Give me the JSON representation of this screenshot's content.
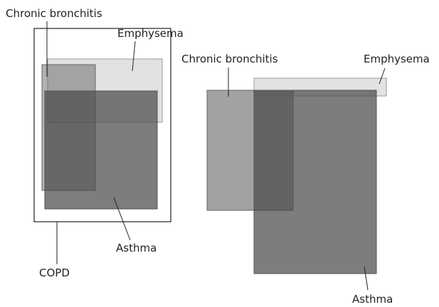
{
  "diagrams": [
    {
      "nodes": [
        {
          "label": "Chronic bronchitis"
        },
        {
          "label": "Emphysema"
        },
        {
          "label": "Asthma"
        },
        {
          "label": "COPD"
        }
      ]
    },
    {
      "nodes": [
        {
          "label": "Chronic bronchitis"
        },
        {
          "label": "Emphysema"
        },
        {
          "label": "Asthma"
        }
      ]
    }
  ]
}
